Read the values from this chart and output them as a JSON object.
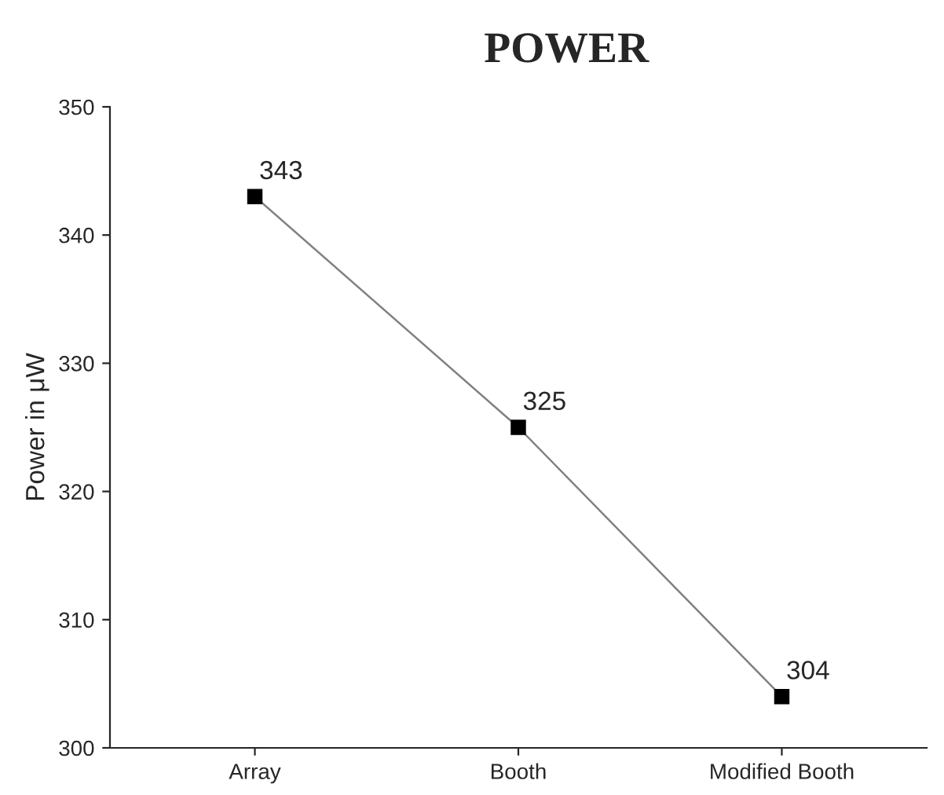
{
  "chart_data": {
    "type": "line",
    "title": "POWER",
    "ylabel": "Power in μW",
    "categories": [
      "Array",
      "Booth",
      "Modified Booth"
    ],
    "series": [
      {
        "color": "#000000",
        "values": [
          343,
          325,
          304
        ]
      }
    ],
    "ylim": [
      300,
      350
    ],
    "yticks": [
      300,
      310,
      320,
      330,
      340,
      350
    ],
    "data_labels": true,
    "marker": "square",
    "line_style": "solid",
    "grid": false,
    "legend": false
  }
}
